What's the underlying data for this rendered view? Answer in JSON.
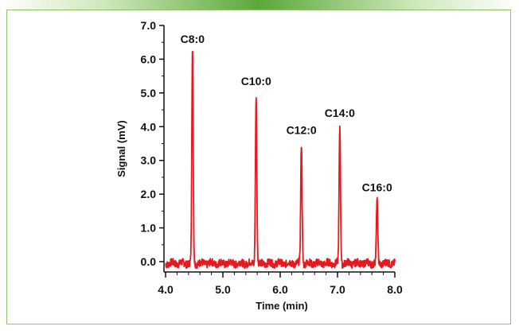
{
  "chart_data": {
    "type": "line",
    "xlabel": "Time (min)",
    "ylabel": "Signal (mV)",
    "xlim": [
      4.0,
      8.0
    ],
    "ylim": [
      -0.3,
      7.0
    ],
    "x_ticks": [
      "4.0",
      "5.0",
      "6.0",
      "7.0",
      "8.0"
    ],
    "y_ticks": [
      "0.0",
      "1.0",
      "2.0",
      "3.0",
      "4.0",
      "5.0",
      "6.0",
      "7.0"
    ],
    "series_color": "#e8191e",
    "peaks": [
      {
        "label": "C8:0",
        "x": 4.47,
        "y": 6.25
      },
      {
        "label": "C10:0",
        "x": 5.58,
        "y": 5.0
      },
      {
        "label": "C12:0",
        "x": 6.37,
        "y": 3.55
      },
      {
        "label": "C14:0",
        "x": 7.04,
        "y": 4.05
      },
      {
        "label": "C16:0",
        "x": 7.69,
        "y": 1.85
      }
    ],
    "x_range": [
      4.0,
      8.0
    ]
  }
}
